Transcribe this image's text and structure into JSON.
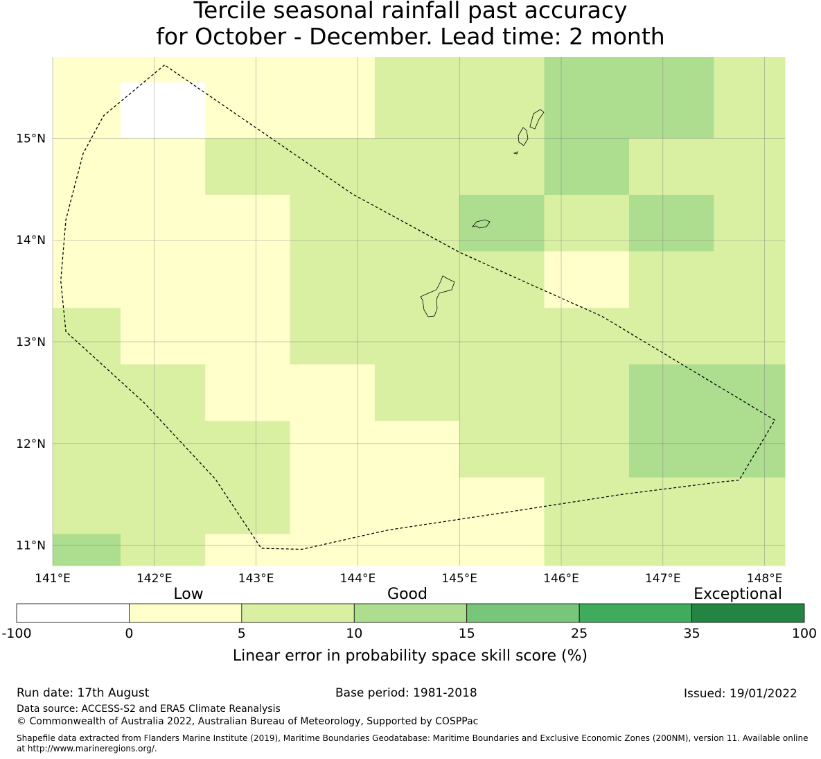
{
  "title": {
    "line1": "Tercile seasonal rainfall past accuracy",
    "line2": "for October - December. Lead time: 2 month"
  },
  "map": {
    "lon_range": [
      141.0,
      148.2
    ],
    "lat_range": [
      10.8,
      15.8
    ],
    "x_ticks": [
      "141°E",
      "142°E",
      "143°E",
      "144°E",
      "145°E",
      "146°E",
      "147°E",
      "148°E"
    ],
    "y_ticks": [
      "15°N",
      "14°N",
      "13°N",
      "12°N",
      "11°N"
    ],
    "grid": true
  },
  "colorbar": {
    "category_labels": [
      "Low",
      "Good",
      "Exceptional"
    ],
    "boundaries": [
      "-100",
      "0",
      "5",
      "10",
      "15",
      "25",
      "35",
      "100"
    ],
    "colors": [
      "#ffffff",
      "#ffffcc",
      "#d9f0a3",
      "#addd8e",
      "#78c679",
      "#41ab5d",
      "#238443"
    ],
    "label": "Linear error in probability space skill score (%)"
  },
  "footer": {
    "run_date": "Run date: 17th August",
    "base_period": "Base period: 1981-2018",
    "issued": "Issued: 19/01/2022",
    "data_source": "Data source: ACCESS-S2 and ERA5 Climate Reanalysis",
    "copyright": "© Commonwealth of Australia 2022, Australian Bureau of Meteorology, Supported by COSPPac",
    "shapefile": "Shapefile data extracted from Flanders Marine Institute (2019), Maritime Boundaries Geodatabase: Maritime Boundaries and Exclusive Economic Zones (200NM), version 11. Available online at http://www.marineregions.org/."
  },
  "chart_data": {
    "type": "heatmap",
    "description_units": "LEPS skill score category per grid cell, rows from north to south, columns from west to east",
    "lon_edges": [
      141.0,
      141.667,
      142.5,
      143.333,
      144.167,
      145.0,
      145.833,
      146.667,
      147.5,
      148.2
    ],
    "lat_edges": [
      15.8,
      15.0,
      14.444,
      13.889,
      13.333,
      12.778,
      12.222,
      11.667,
      11.111,
      10.8
    ],
    "category_scale": [
      0,
      1,
      2,
      3
    ],
    "cells": [
      [
        1,
        1,
        1,
        1,
        2,
        2,
        3,
        3,
        2
      ],
      [
        1,
        1,
        2,
        2,
        2,
        2,
        3,
        2,
        2
      ],
      [
        1,
        1,
        1,
        2,
        2,
        3,
        2,
        3,
        2
      ],
      [
        1,
        1,
        1,
        2,
        2,
        2,
        1,
        2,
        2
      ],
      [
        2,
        1,
        1,
        2,
        2,
        2,
        2,
        2,
        2
      ],
      [
        2,
        2,
        1,
        1,
        2,
        2,
        2,
        3,
        3
      ],
      [
        2,
        2,
        2,
        1,
        1,
        2,
        2,
        3,
        3
      ],
      [
        2,
        2,
        2,
        1,
        1,
        1,
        2,
        2,
        2
      ],
      [
        3,
        2,
        1,
        1,
        1,
        1,
        2,
        2,
        2
      ]
    ],
    "missing_cell": {
      "lon": [
        141.667,
        142.5
      ],
      "lat": [
        15.0,
        15.55
      ],
      "category": 0
    },
    "eez_boundary": [
      [
        142.1,
        15.72
      ],
      [
        141.5,
        15.22
      ],
      [
        141.3,
        14.85
      ],
      [
        141.13,
        14.2
      ],
      [
        141.08,
        13.6
      ],
      [
        141.13,
        13.1
      ],
      [
        141.35,
        12.9
      ],
      [
        141.9,
        12.4
      ],
      [
        142.6,
        11.65
      ],
      [
        143.05,
        10.97
      ],
      [
        143.45,
        10.96
      ],
      [
        144.3,
        11.15
      ],
      [
        145.5,
        11.33
      ],
      [
        146.6,
        11.5
      ],
      [
        147.55,
        11.62
      ],
      [
        147.75,
        11.64
      ],
      [
        148.1,
        12.23
      ],
      [
        147.4,
        12.65
      ],
      [
        146.4,
        13.25
      ],
      [
        145.55,
        13.63
      ],
      [
        145.0,
        13.88
      ],
      [
        143.95,
        14.45
      ],
      [
        142.1,
        15.72
      ]
    ]
  }
}
